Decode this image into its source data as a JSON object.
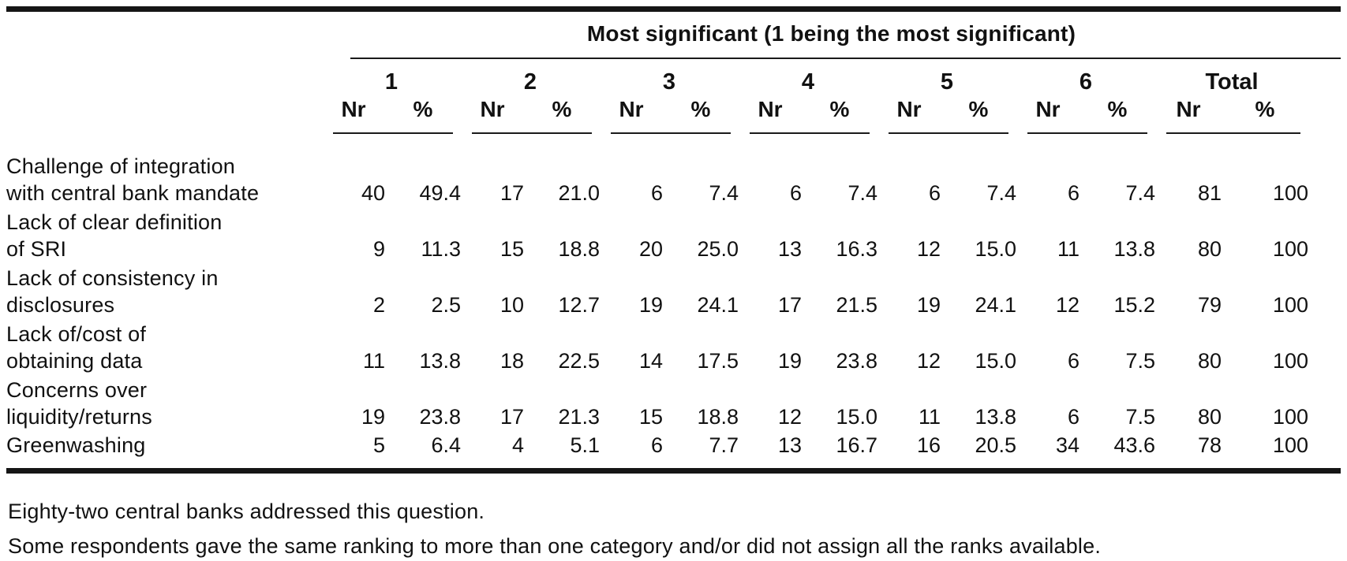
{
  "table": {
    "span_header": "Most significant (1 being the most significant)",
    "groups": [
      "1",
      "2",
      "3",
      "4",
      "5",
      "6",
      "Total"
    ],
    "sub_headers": {
      "nr": "Nr",
      "pct": "%"
    },
    "rows": [
      {
        "label_lines": [
          "Challenge of integration",
          "with central bank mandate"
        ],
        "values": [
          "40",
          "49.4",
          "17",
          "21.0",
          "6",
          "7.4",
          "6",
          "7.4",
          "6",
          "7.4",
          "6",
          "7.4",
          "81",
          "100"
        ]
      },
      {
        "label_lines": [
          "Lack of clear definition",
          "of SRI"
        ],
        "values": [
          "9",
          "11.3",
          "15",
          "18.8",
          "20",
          "25.0",
          "13",
          "16.3",
          "12",
          "15.0",
          "11",
          "13.8",
          "80",
          "100"
        ]
      },
      {
        "label_lines": [
          "Lack of consistency in",
          "disclosures"
        ],
        "values": [
          "2",
          "2.5",
          "10",
          "12.7",
          "19",
          "24.1",
          "17",
          "21.5",
          "19",
          "24.1",
          "12",
          "15.2",
          "79",
          "100"
        ]
      },
      {
        "label_lines": [
          "Lack of/cost of",
          "obtaining data"
        ],
        "values": [
          "11",
          "13.8",
          "18",
          "22.5",
          "14",
          "17.5",
          "19",
          "23.8",
          "12",
          "15.0",
          "6",
          "7.5",
          "80",
          "100"
        ]
      },
      {
        "label_lines": [
          "Concerns over",
          "liquidity/returns"
        ],
        "values": [
          "19",
          "23.8",
          "17",
          "21.3",
          "15",
          "18.8",
          "12",
          "15.0",
          "11",
          "13.8",
          "6",
          "7.5",
          "80",
          "100"
        ]
      },
      {
        "label_lines": [
          "Greenwashing"
        ],
        "values": [
          "5",
          "6.4",
          "4",
          "5.1",
          "6",
          "7.7",
          "13",
          "16.7",
          "16",
          "20.5",
          "34",
          "43.6",
          "78",
          "100"
        ]
      }
    ]
  },
  "footnotes": [
    "Eighty-two central banks addressed this question.",
    "Some respondents gave the same ranking to more than one category and/or did not assign all the ranks available."
  ]
}
